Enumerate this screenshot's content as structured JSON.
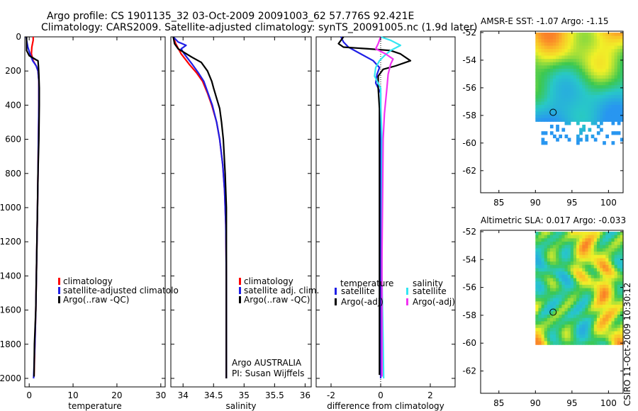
{
  "header": {
    "line1": "Argo profile: CS 1901135_32 03-Oct-2009 20091003_62 57.776S 92.421E",
    "line2": "Climatology: CARS2009. Satellite-adjusted climatology: synTS_20091005.nc (1.9d later)"
  },
  "colors": {
    "red": "#ff0000",
    "blue": "#1f1fe6",
    "black": "#000000",
    "cyan": "#33e6f2",
    "magenta": "#f233f2"
  },
  "chart_data": [
    {
      "id": "temperature",
      "type": "line",
      "xlabel": "temperature",
      "xlim": [
        -1,
        31
      ],
      "xticks": [
        0,
        10,
        20,
        30
      ],
      "ylim": [
        2050,
        0
      ],
      "yticks": [
        0,
        200,
        400,
        600,
        800,
        1000,
        1200,
        1400,
        1600,
        1800,
        2000
      ],
      "legend": [
        "climatology",
        "satellite-adjusted climatolo",
        "Argo(..raw -QC)"
      ],
      "series": [
        {
          "name": "climatology",
          "color": "red",
          "points": [
            [
              0.9,
              0
            ],
            [
              0.9,
              20
            ],
            [
              0.6,
              60
            ],
            [
              0.5,
              100
            ],
            [
              0.9,
              140
            ],
            [
              1.6,
              170
            ],
            [
              2.0,
              200
            ],
            [
              2.2,
              260
            ],
            [
              2.2,
              400
            ],
            [
              2.1,
              600
            ],
            [
              2.0,
              800
            ],
            [
              1.9,
              1000
            ],
            [
              1.7,
              1300
            ],
            [
              1.5,
              1600
            ],
            [
              1.3,
              1800
            ],
            [
              1.1,
              1990
            ]
          ]
        },
        {
          "name": "satellite-adjusted climatology",
          "color": "blue",
          "points": [
            [
              -0.7,
              0
            ],
            [
              -0.6,
              20
            ],
            [
              -0.3,
              60
            ],
            [
              0.2,
              100
            ],
            [
              0.8,
              140
            ],
            [
              1.6,
              170
            ],
            [
              2.0,
              200
            ],
            [
              2.2,
              260
            ],
            [
              2.2,
              400
            ],
            [
              2.1,
              600
            ],
            [
              2.0,
              800
            ],
            [
              1.9,
              1000
            ],
            [
              1.7,
              1300
            ],
            [
              1.5,
              1600
            ],
            [
              1.3,
              1800
            ],
            [
              1.0,
              2000
            ]
          ]
        },
        {
          "name": "Argo(..raw -QC)",
          "color": "black",
          "points": [
            [
              -0.6,
              0
            ],
            [
              -0.6,
              20
            ],
            [
              -0.6,
              80
            ],
            [
              0.0,
              110
            ],
            [
              1.6,
              135
            ],
            [
              2.0,
              140
            ],
            [
              2.1,
              170
            ],
            [
              2.2,
              220
            ],
            [
              2.3,
              300
            ],
            [
              2.3,
              400
            ],
            [
              2.2,
              600
            ],
            [
              2.0,
              800
            ],
            [
              1.9,
              1000
            ],
            [
              1.7,
              1300
            ],
            [
              1.5,
              1600
            ],
            [
              1.2,
              1800
            ],
            [
              1.1,
              1990
            ]
          ]
        }
      ]
    },
    {
      "id": "salinity",
      "type": "line",
      "xlabel": "salinity",
      "xlim": [
        33.8,
        36.1
      ],
      "xticks": [
        34,
        34.5,
        35,
        35.5,
        36
      ],
      "xticklabels": [
        "34",
        "34.5",
        "35",
        "35.5",
        "36"
      ],
      "ylim": [
        2050,
        0
      ],
      "legend": [
        "climatology",
        "satellite adj. clim.",
        "Argo(..raw -QC)"
      ],
      "annotation": [
        "Argo AUSTRALIA",
        "PI: Susan Wijffels"
      ],
      "series": [
        {
          "name": "climatology",
          "color": "red",
          "points": [
            [
              33.84,
              0
            ],
            [
              33.88,
              40
            ],
            [
              33.97,
              100
            ],
            [
              34.1,
              160
            ],
            [
              34.22,
              210
            ],
            [
              34.32,
              260
            ],
            [
              34.4,
              330
            ],
            [
              34.47,
              400
            ],
            [
              34.55,
              500
            ],
            [
              34.6,
              600
            ],
            [
              34.65,
              750
            ],
            [
              34.68,
              900
            ],
            [
              34.7,
              1100
            ],
            [
              34.71,
              1400
            ],
            [
              34.71,
              1700
            ],
            [
              34.71,
              2000
            ]
          ]
        },
        {
          "name": "satellite adj. clim.",
          "color": "blue",
          "points": [
            [
              33.84,
              0
            ],
            [
              33.92,
              30
            ],
            [
              34.05,
              50
            ],
            [
              33.97,
              70
            ],
            [
              34.02,
              100
            ],
            [
              34.15,
              160
            ],
            [
              34.25,
              210
            ],
            [
              34.34,
              260
            ],
            [
              34.41,
              330
            ],
            [
              34.48,
              400
            ],
            [
              34.55,
              500
            ],
            [
              34.6,
              600
            ],
            [
              34.65,
              750
            ],
            [
              34.68,
              900
            ],
            [
              34.7,
              1100
            ],
            [
              34.71,
              1400
            ],
            [
              34.71,
              1700
            ],
            [
              34.71,
              2000
            ]
          ]
        },
        {
          "name": "Argo(..raw -QC)",
          "color": "black",
          "points": [
            [
              33.84,
              0
            ],
            [
              33.86,
              40
            ],
            [
              33.92,
              70
            ],
            [
              34.15,
              120
            ],
            [
              34.3,
              150
            ],
            [
              34.4,
              200
            ],
            [
              34.47,
              260
            ],
            [
              34.5,
              300
            ],
            [
              34.55,
              360
            ],
            [
              34.6,
              420
            ],
            [
              34.63,
              500
            ],
            [
              34.66,
              600
            ],
            [
              34.69,
              800
            ],
            [
              34.71,
              1000
            ],
            [
              34.71,
              1400
            ],
            [
              34.71,
              1700
            ],
            [
              34.71,
              2000
            ]
          ]
        }
      ]
    },
    {
      "id": "difference",
      "type": "line",
      "xlabel": "difference from climatology",
      "xlim": [
        -2.6,
        3.0
      ],
      "xticks": [
        -2,
        0,
        2
      ],
      "ylim": [
        2050,
        0
      ],
      "legend_headers": [
        "temperature",
        "salinity"
      ],
      "legend": [
        "satellite",
        "Argo(-adj)",
        "satellite",
        "Argo(-adj)"
      ],
      "series": [
        {
          "name": "temperature satellite",
          "color": "blue",
          "points": [
            [
              -1.6,
              0
            ],
            [
              -1.5,
              30
            ],
            [
              -1.3,
              60
            ],
            [
              -0.8,
              100
            ],
            [
              -0.3,
              140
            ],
            [
              -0.05,
              180
            ],
            [
              -0.15,
              220
            ],
            [
              -0.2,
              270
            ],
            [
              0.0,
              330
            ],
            [
              0.0,
              600
            ],
            [
              0.0,
              1000
            ],
            [
              0.0,
              1500
            ],
            [
              0.0,
              2000
            ]
          ]
        },
        {
          "name": "temperature Argo(-adj)",
          "color": "black",
          "points": [
            [
              -1.5,
              0
            ],
            [
              -1.7,
              40
            ],
            [
              -1.5,
              60
            ],
            [
              -0.5,
              70
            ],
            [
              0.4,
              80
            ],
            [
              0.8,
              100
            ],
            [
              1.2,
              140
            ],
            [
              0.6,
              170
            ],
            [
              0.1,
              190
            ],
            [
              -0.1,
              230
            ],
            [
              -0.1,
              300
            ],
            [
              -0.05,
              420
            ],
            [
              -0.05,
              500
            ],
            [
              -0.05,
              800
            ],
            [
              -0.05,
              1200
            ],
            [
              -0.05,
              1600
            ],
            [
              -0.05,
              1980
            ]
          ]
        },
        {
          "name": "salinity satellite",
          "color": "cyan",
          "points": [
            [
              0.0,
              0
            ],
            [
              0.4,
              20
            ],
            [
              0.8,
              50
            ],
            [
              0.4,
              80
            ],
            [
              0.15,
              110
            ],
            [
              -0.05,
              140
            ],
            [
              -0.2,
              180
            ],
            [
              -0.25,
              230
            ],
            [
              0.0,
              300
            ],
            [
              0.0,
              400
            ],
            [
              0.05,
              600
            ],
            [
              0.05,
              1000
            ],
            [
              0.05,
              1400
            ],
            [
              0.1,
              1800
            ],
            [
              0.12,
              2000
            ]
          ]
        },
        {
          "name": "salinity Argo(-adj)",
          "color": "magenta",
          "points": [
            [
              0.0,
              0
            ],
            [
              -0.1,
              40
            ],
            [
              -0.2,
              70
            ],
            [
              0.2,
              100
            ],
            [
              0.5,
              130
            ],
            [
              0.4,
              160
            ],
            [
              0.3,
              220
            ],
            [
              0.25,
              300
            ],
            [
              0.15,
              450
            ],
            [
              0.1,
              600
            ],
            [
              0.08,
              900
            ],
            [
              0.05,
              1300
            ],
            [
              0.05,
              1700
            ],
            [
              0.05,
              1990
            ]
          ]
        }
      ]
    },
    {
      "id": "sst-map",
      "type": "heatmap",
      "title": "AMSR-E SST: -1.07 Argo: -1.15",
      "xlim": [
        82.5,
        102
      ],
      "ylim": [
        -63.6,
        -51.9
      ],
      "xticks": [
        85,
        90,
        95,
        100
      ],
      "yticks": [
        -52,
        -54,
        -56,
        -58,
        -60,
        -62
      ],
      "float_position": [
        92.421,
        -57.776
      ]
    },
    {
      "id": "sla-map",
      "type": "heatmap",
      "title": "Altimetric SLA: 0.017 Argo: -0.033",
      "xlim": [
        82.5,
        102
      ],
      "ylim": [
        -63.6,
        -51.9
      ],
      "xticks": [
        85,
        90,
        95,
        100
      ],
      "yticks": [
        -52,
        -54,
        -56,
        -58,
        -60,
        -62
      ],
      "float_position": [
        92.421,
        -57.776
      ]
    }
  ],
  "footer": {
    "stamp": "CSIRO 11-Oct-2009 10:30:12"
  }
}
